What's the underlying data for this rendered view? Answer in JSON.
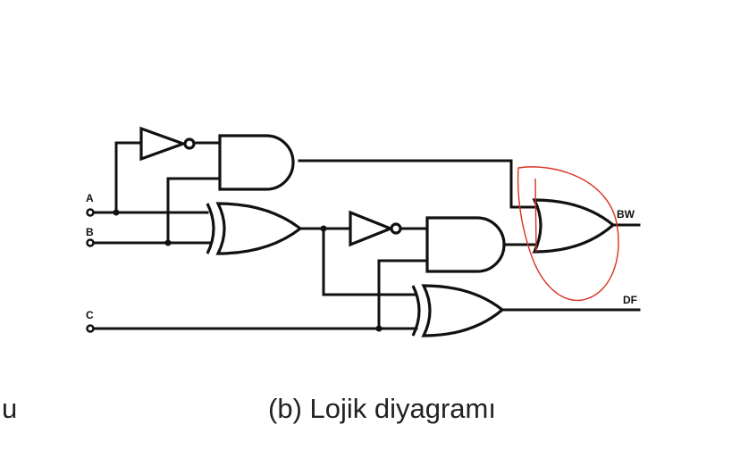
{
  "caption": "(b) Lojik diyagramı",
  "left_fragment": "u",
  "inputs": [
    {
      "label": "A"
    },
    {
      "label": "B"
    },
    {
      "label": "C"
    }
  ],
  "outputs": [
    {
      "label": "BW"
    },
    {
      "label": "DF"
    }
  ],
  "gates": [
    {
      "type": "NOT",
      "name": "not-a"
    },
    {
      "type": "AND",
      "name": "and-1"
    },
    {
      "type": "XOR",
      "name": "xor-1"
    },
    {
      "type": "NOT",
      "name": "not-2"
    },
    {
      "type": "AND",
      "name": "and-2"
    },
    {
      "type": "XOR",
      "name": "xor-2"
    },
    {
      "type": "OR",
      "name": "or-bw"
    }
  ],
  "colors": {
    "ink": "#111111",
    "annotation": "#d9311e"
  }
}
